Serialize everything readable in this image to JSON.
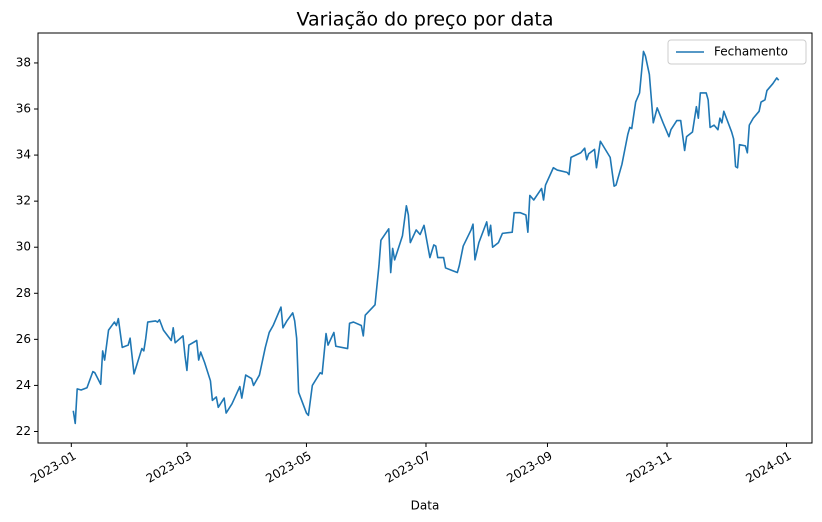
{
  "chart_data": {
    "type": "line",
    "title": "Variação do preço por data",
    "x_label": "Data",
    "xlim": [
      "2022-12-15",
      "2024-01-14"
    ],
    "xticks": [
      {
        "value": "2023-01-01",
        "label": "2023-01"
      },
      {
        "value": "2023-03-01",
        "label": "2023-03"
      },
      {
        "value": "2023-05-01",
        "label": "2023-05"
      },
      {
        "value": "2023-07-01",
        "label": "2023-07"
      },
      {
        "value": "2023-09-01",
        "label": "2023-09"
      },
      {
        "value": "2023-11-01",
        "label": "2023-11"
      },
      {
        "value": "2024-01-01",
        "label": "2024-01"
      }
    ],
    "ylim": [
      21.5,
      39.3
    ],
    "yticks": [
      22,
      24,
      26,
      28,
      30,
      32,
      34,
      36,
      38
    ],
    "grid": false,
    "legend": "upper right",
    "x": [
      "2023-01-02",
      "2023-01-03",
      "2023-01-04",
      "2023-01-06",
      "2023-01-09",
      "2023-01-12",
      "2023-01-13",
      "2023-01-16",
      "2023-01-17",
      "2023-01-18",
      "2023-01-20",
      "2023-01-23",
      "2023-01-24",
      "2023-01-25",
      "2023-01-27",
      "2023-01-30",
      "2023-01-31",
      "2023-02-02",
      "2023-02-06",
      "2023-02-07",
      "2023-02-08",
      "2023-02-09",
      "2023-02-13",
      "2023-02-14",
      "2023-02-15",
      "2023-02-17",
      "2023-02-21",
      "2023-02-22",
      "2023-02-23",
      "2023-02-27",
      "2023-02-28",
      "2023-03-01",
      "2023-03-02",
      "2023-03-06",
      "2023-03-07",
      "2023-03-08",
      "2023-03-10",
      "2023-03-13",
      "2023-03-14",
      "2023-03-16",
      "2023-03-17",
      "2023-03-20",
      "2023-03-21",
      "2023-03-24",
      "2023-03-28",
      "2023-03-29",
      "2023-03-31",
      "2023-04-03",
      "2023-04-04",
      "2023-04-07",
      "2023-04-10",
      "2023-04-12",
      "2023-04-14",
      "2023-04-18",
      "2023-04-19",
      "2023-04-21",
      "2023-04-24",
      "2023-04-25",
      "2023-04-26",
      "2023-04-27",
      "2023-05-01",
      "2023-05-02",
      "2023-05-04",
      "2023-05-08",
      "2023-05-09",
      "2023-05-11",
      "2023-05-12",
      "2023-05-15",
      "2023-05-16",
      "2023-05-22",
      "2023-05-23",
      "2023-05-25",
      "2023-05-29",
      "2023-05-30",
      "2023-05-31",
      "2023-06-05",
      "2023-06-07",
      "2023-06-08",
      "2023-06-12",
      "2023-06-13",
      "2023-06-14",
      "2023-06-15",
      "2023-06-19",
      "2023-06-21",
      "2023-06-22",
      "2023-06-23",
      "2023-06-26",
      "2023-06-28",
      "2023-06-30",
      "2023-07-03",
      "2023-07-05",
      "2023-07-06",
      "2023-07-07",
      "2023-07-10",
      "2023-07-11",
      "2023-07-14",
      "2023-07-17",
      "2023-07-18",
      "2023-07-20",
      "2023-07-24",
      "2023-07-25",
      "2023-07-26",
      "2023-07-28",
      "2023-08-01",
      "2023-08-02",
      "2023-08-03",
      "2023-08-04",
      "2023-08-07",
      "2023-08-09",
      "2023-08-14",
      "2023-08-15",
      "2023-08-18",
      "2023-08-21",
      "2023-08-22",
      "2023-08-23",
      "2023-08-25",
      "2023-08-29",
      "2023-08-30",
      "2023-08-31",
      "2023-09-04",
      "2023-09-06",
      "2023-09-11",
      "2023-09-12",
      "2023-09-13",
      "2023-09-18",
      "2023-09-20",
      "2023-09-21",
      "2023-09-22",
      "2023-09-25",
      "2023-09-26",
      "2023-09-28",
      "2023-10-03",
      "2023-10-05",
      "2023-10-06",
      "2023-10-09",
      "2023-10-12",
      "2023-10-13",
      "2023-10-14",
      "2023-10-16",
      "2023-10-18",
      "2023-10-20",
      "2023-10-21",
      "2023-10-23",
      "2023-10-25",
      "2023-10-27",
      "2023-10-30",
      "2023-11-02",
      "2023-11-03",
      "2023-11-06",
      "2023-11-08",
      "2023-11-10",
      "2023-11-11",
      "2023-11-14",
      "2023-11-16",
      "2023-11-17",
      "2023-11-18",
      "2023-11-21",
      "2023-11-22",
      "2023-11-23",
      "2023-11-25",
      "2023-11-27",
      "2023-11-28",
      "2023-11-29",
      "2023-11-30",
      "2023-12-04",
      "2023-12-05",
      "2023-12-06",
      "2023-12-07",
      "2023-12-08",
      "2023-12-11",
      "2023-12-12",
      "2023-12-13",
      "2023-12-15",
      "2023-12-18",
      "2023-12-19",
      "2023-12-21",
      "2023-12-22",
      "2023-12-25",
      "2023-12-27",
      "2023-12-28"
    ],
    "series": [
      {
        "name": "Fechamento",
        "color": "#1f77b4",
        "values": [
          22.9,
          22.35,
          23.85,
          23.8,
          23.9,
          24.6,
          24.55,
          24.05,
          25.5,
          25.1,
          26.4,
          26.75,
          26.6,
          26.9,
          25.65,
          25.75,
          26.05,
          24.5,
          25.6,
          25.5,
          26.05,
          26.75,
          26.8,
          26.75,
          26.85,
          26.4,
          25.95,
          26.5,
          25.85,
          26.15,
          25.3,
          24.65,
          25.75,
          25.95,
          25.1,
          25.45,
          25.0,
          24.2,
          23.35,
          23.5,
          23.05,
          23.45,
          22.8,
          23.2,
          23.95,
          23.45,
          24.45,
          24.3,
          24.0,
          24.45,
          25.65,
          26.3,
          26.6,
          27.4,
          26.5,
          26.8,
          27.15,
          26.8,
          26.05,
          23.7,
          22.8,
          22.7,
          24.0,
          24.55,
          24.5,
          26.25,
          25.75,
          26.3,
          25.7,
          25.6,
          26.7,
          26.75,
          26.6,
          26.15,
          27.05,
          27.5,
          29.2,
          30.3,
          30.8,
          28.9,
          29.95,
          29.45,
          30.5,
          31.8,
          31.4,
          30.2,
          30.75,
          30.55,
          30.95,
          29.55,
          30.1,
          30.05,
          29.55,
          29.55,
          29.1,
          29.0,
          28.9,
          29.2,
          30.05,
          30.75,
          31.0,
          29.45,
          30.2,
          31.1,
          30.5,
          30.95,
          30.0,
          30.2,
          30.6,
          30.65,
          31.5,
          31.5,
          31.4,
          30.65,
          32.25,
          32.05,
          32.55,
          32.05,
          32.7,
          33.45,
          33.35,
          33.25,
          33.15,
          33.9,
          34.1,
          34.3,
          33.8,
          34.05,
          34.25,
          33.45,
          34.6,
          33.9,
          32.65,
          32.7,
          33.6,
          34.9,
          35.2,
          35.15,
          36.3,
          36.7,
          38.5,
          38.3,
          37.5,
          35.4,
          36.05,
          35.4,
          34.8,
          35.1,
          35.5,
          35.5,
          34.2,
          34.8,
          35.0,
          36.1,
          35.6,
          36.7,
          36.7,
          36.4,
          35.2,
          35.3,
          35.1,
          35.6,
          35.4,
          35.9,
          35.0,
          34.7,
          33.5,
          33.45,
          34.45,
          34.4,
          34.1,
          35.3,
          35.6,
          35.9,
          36.3,
          36.4,
          36.8,
          37.1,
          37.35,
          37.25
        ]
      }
    ]
  }
}
